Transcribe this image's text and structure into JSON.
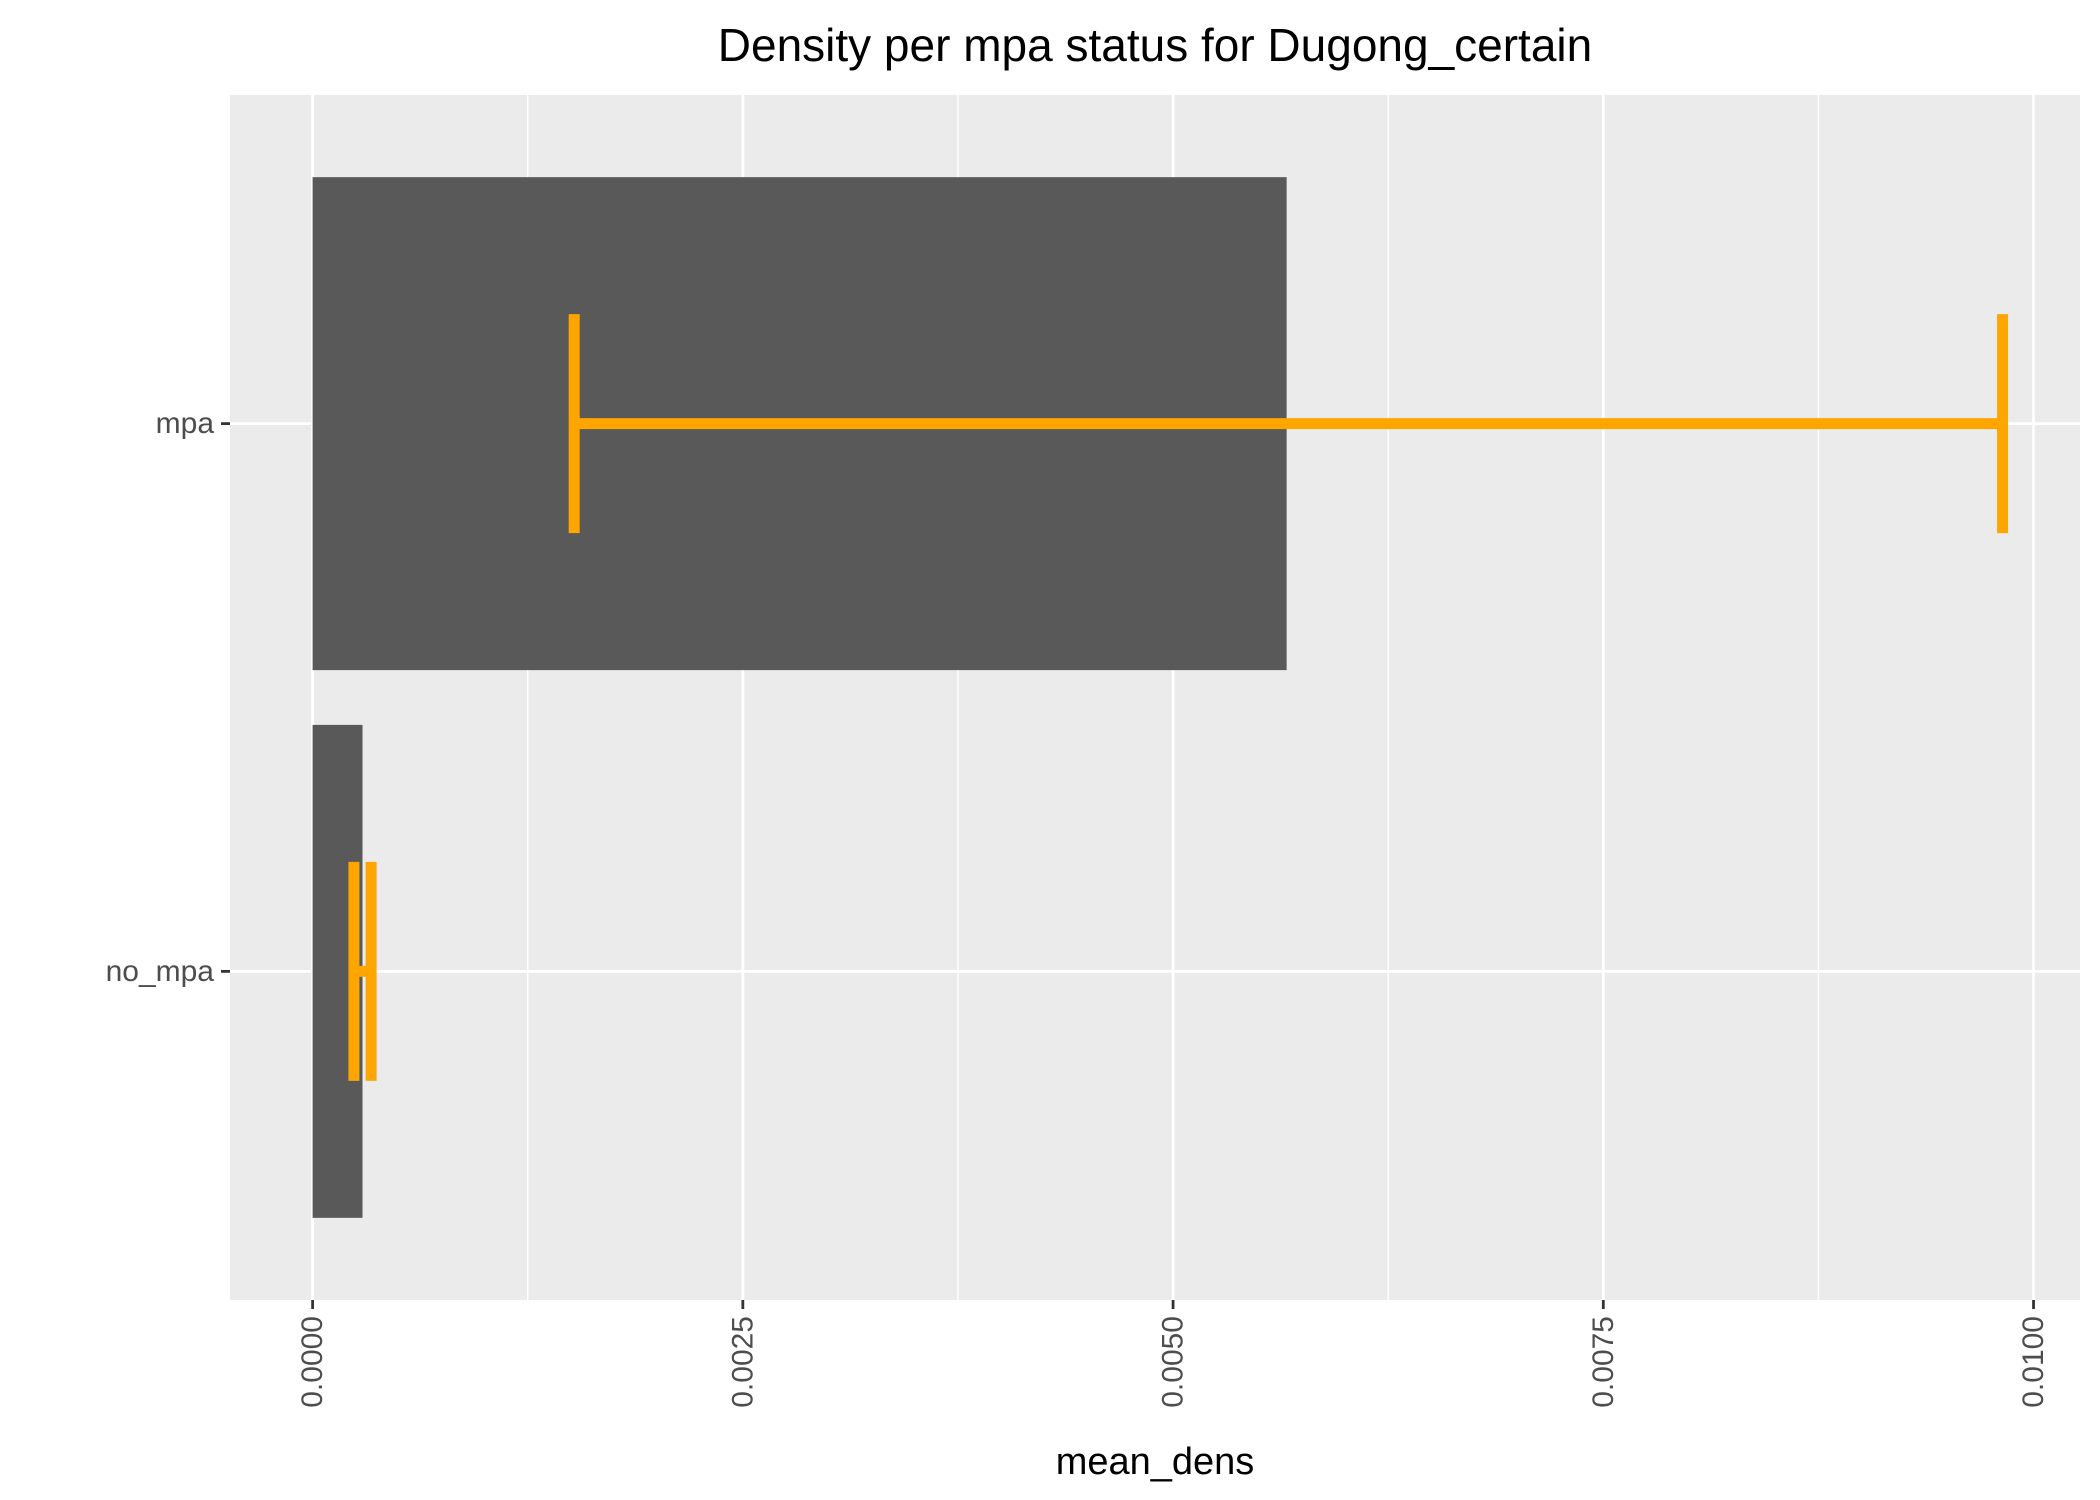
{
  "chart_data": {
    "type": "bar",
    "orientation": "horizontal",
    "title": "Density per mpa status for Dugong_certain",
    "xlabel": "mean_dens",
    "ylabel": "",
    "categories": [
      "mpa",
      "no_mpa"
    ],
    "values": [
      0.00566,
      0.00029
    ],
    "error_bars": [
      {
        "category": "mpa",
        "low": 0.00152,
        "high": 0.00982
      },
      {
        "category": "no_mpa",
        "low": 0.00024,
        "high": 0.00034
      }
    ],
    "xlim": [
      -0.00048,
      0.01027
    ],
    "xticks": [
      "0.0000",
      "0.0025",
      "0.0050",
      "0.0075",
      "0.0100"
    ],
    "xtick_values": [
      0,
      0.0025,
      0.005,
      0.0075,
      0.01
    ],
    "grid": true,
    "legend": "none",
    "colors": {
      "panel_background": "#ebebeb",
      "gridline": "#ffffff",
      "bar": "#595959",
      "error_bar": "#ffa500",
      "tick_label": "#4d4d4d"
    }
  }
}
